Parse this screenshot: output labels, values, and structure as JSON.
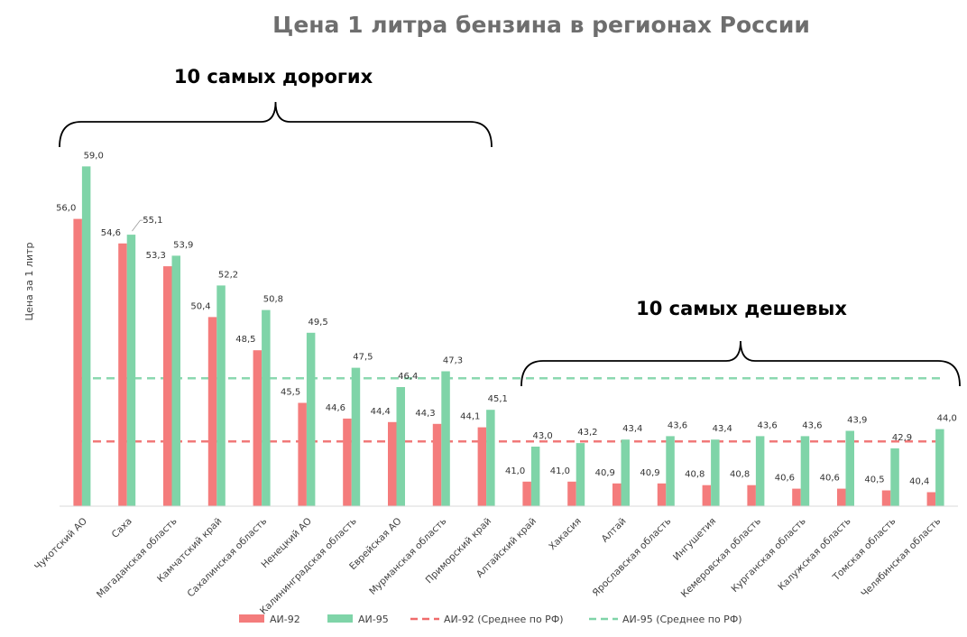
{
  "chart_data": {
    "type": "bar",
    "title": "Цена 1 литра бензина в регионах России",
    "ylabel": "Цена за 1 литр",
    "xlabel": "",
    "ylim": [
      39.6,
      60
    ],
    "categories": [
      "Чукотский АО",
      "Саха",
      "Магаданская область",
      "Камчатский край",
      "Сахалинская область",
      "Ненецкий АО",
      "Калининградская область",
      "Еврейская АО",
      "Мурманская область",
      "Приморский край",
      "Алтайский край",
      "Хакасия",
      "Алтай",
      "Ярославская область",
      "Ингушетия",
      "Кемеровская область",
      "Курганская область",
      "Калужская область",
      "Томская область",
      "Челябинская область"
    ],
    "series": [
      {
        "name": "АИ-92",
        "color": "#f47c7c",
        "values": [
          56.0,
          54.6,
          53.3,
          50.4,
          48.5,
          45.5,
          44.6,
          44.4,
          44.3,
          44.1,
          41.0,
          41.0,
          40.9,
          40.9,
          40.8,
          40.8,
          40.6,
          40.6,
          40.5,
          40.4
        ]
      },
      {
        "name": "АИ-95",
        "color": "#7fd4a8",
        "values": [
          59.0,
          55.1,
          53.9,
          52.2,
          50.8,
          49.5,
          47.5,
          46.4,
          47.3,
          45.1,
          43.0,
          43.2,
          43.4,
          43.6,
          43.4,
          43.6,
          43.6,
          43.9,
          42.9,
          44.0
        ]
      }
    ],
    "value_labels": {
      "ai92": [
        "56,0",
        "54,6",
        "53,3",
        "50,4",
        "48,5",
        "45,5",
        "44,6",
        "44,4",
        "44,3",
        "44,1",
        "41,0",
        "41,0",
        "40,9",
        "40,9",
        "40,8",
        "40,8",
        "40,6",
        "40,6",
        "40,5",
        "40,4"
      ],
      "ai95": [
        "59,0",
        "55,1",
        "53,9",
        "52,2",
        "50,8",
        "49,5",
        "47,5",
        "46,4",
        "47,3",
        "45,1",
        "43,0",
        "43,2",
        "43,4",
        "43,6",
        "43,4",
        "43,6",
        "43,6",
        "43,9",
        "42,9",
        "44,0"
      ]
    },
    "reference_lines": [
      {
        "name": "АИ-92 (Среднее по РФ)",
        "value": 43.3,
        "color": "#f06b6b",
        "style": "dashed"
      },
      {
        "name": "АИ-95 (Среднее по РФ)",
        "value": 46.9,
        "color": "#7fd4a8",
        "style": "dashed"
      }
    ],
    "groups": [
      {
        "label": "10 самых дорогих",
        "from_index": 0,
        "to_index": 9
      },
      {
        "label": "10 самых дешевых",
        "from_index": 10,
        "to_index": 19
      }
    ],
    "legend": {
      "placement": "bottom",
      "entries": [
        "АИ-92",
        "АИ-95",
        "АИ-92 (Среднее по РФ)",
        "АИ-95 (Среднее по РФ)"
      ]
    },
    "grid": false
  }
}
